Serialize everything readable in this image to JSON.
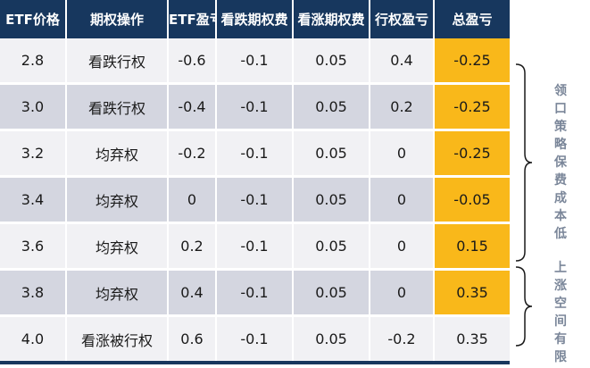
{
  "table": {
    "headers": [
      "ETF价格",
      "期权操作",
      "ETF盈亏",
      "看跌期权费",
      "看涨期权费",
      "行权盈亏",
      "总盈亏"
    ],
    "rows": [
      [
        "2.8",
        "看跌行权",
        "-0.6",
        "-0.1",
        "0.05",
        "0.4",
        "-0.25"
      ],
      [
        "3.0",
        "看跌行权",
        "-0.4",
        "-0.1",
        "0.05",
        "0.2",
        "-0.25"
      ],
      [
        "3.2",
        "均弃权",
        "-0.2",
        "-0.1",
        "0.05",
        "0",
        "-0.25"
      ],
      [
        "3.4",
        "均弃权",
        "0",
        "-0.1",
        "0.05",
        "0",
        "-0.05"
      ],
      [
        "3.6",
        "均弃权",
        "0.2",
        "-0.1",
        "0.05",
        "0",
        "0.15"
      ],
      [
        "3.8",
        "均弃权",
        "0.4",
        "-0.1",
        "0.05",
        "0",
        "0.35"
      ],
      [
        "4.0",
        "看涨被行权",
        "0.6",
        "-0.1",
        "0.05",
        "-0.2",
        "0.35"
      ]
    ],
    "highlighted_total_rows": [
      0,
      1,
      2,
      3,
      4,
      5
    ]
  },
  "annotations": {
    "collar_cost_label": "领口策略保费成本低",
    "upside_label": "上涨空间有限"
  },
  "colors": {
    "header_bg": "#17375e",
    "row_light": "#f1f1f4",
    "row_dark": "#d4d6e0",
    "highlight": "#f9b81a",
    "annotation_text": "#7a8699"
  }
}
